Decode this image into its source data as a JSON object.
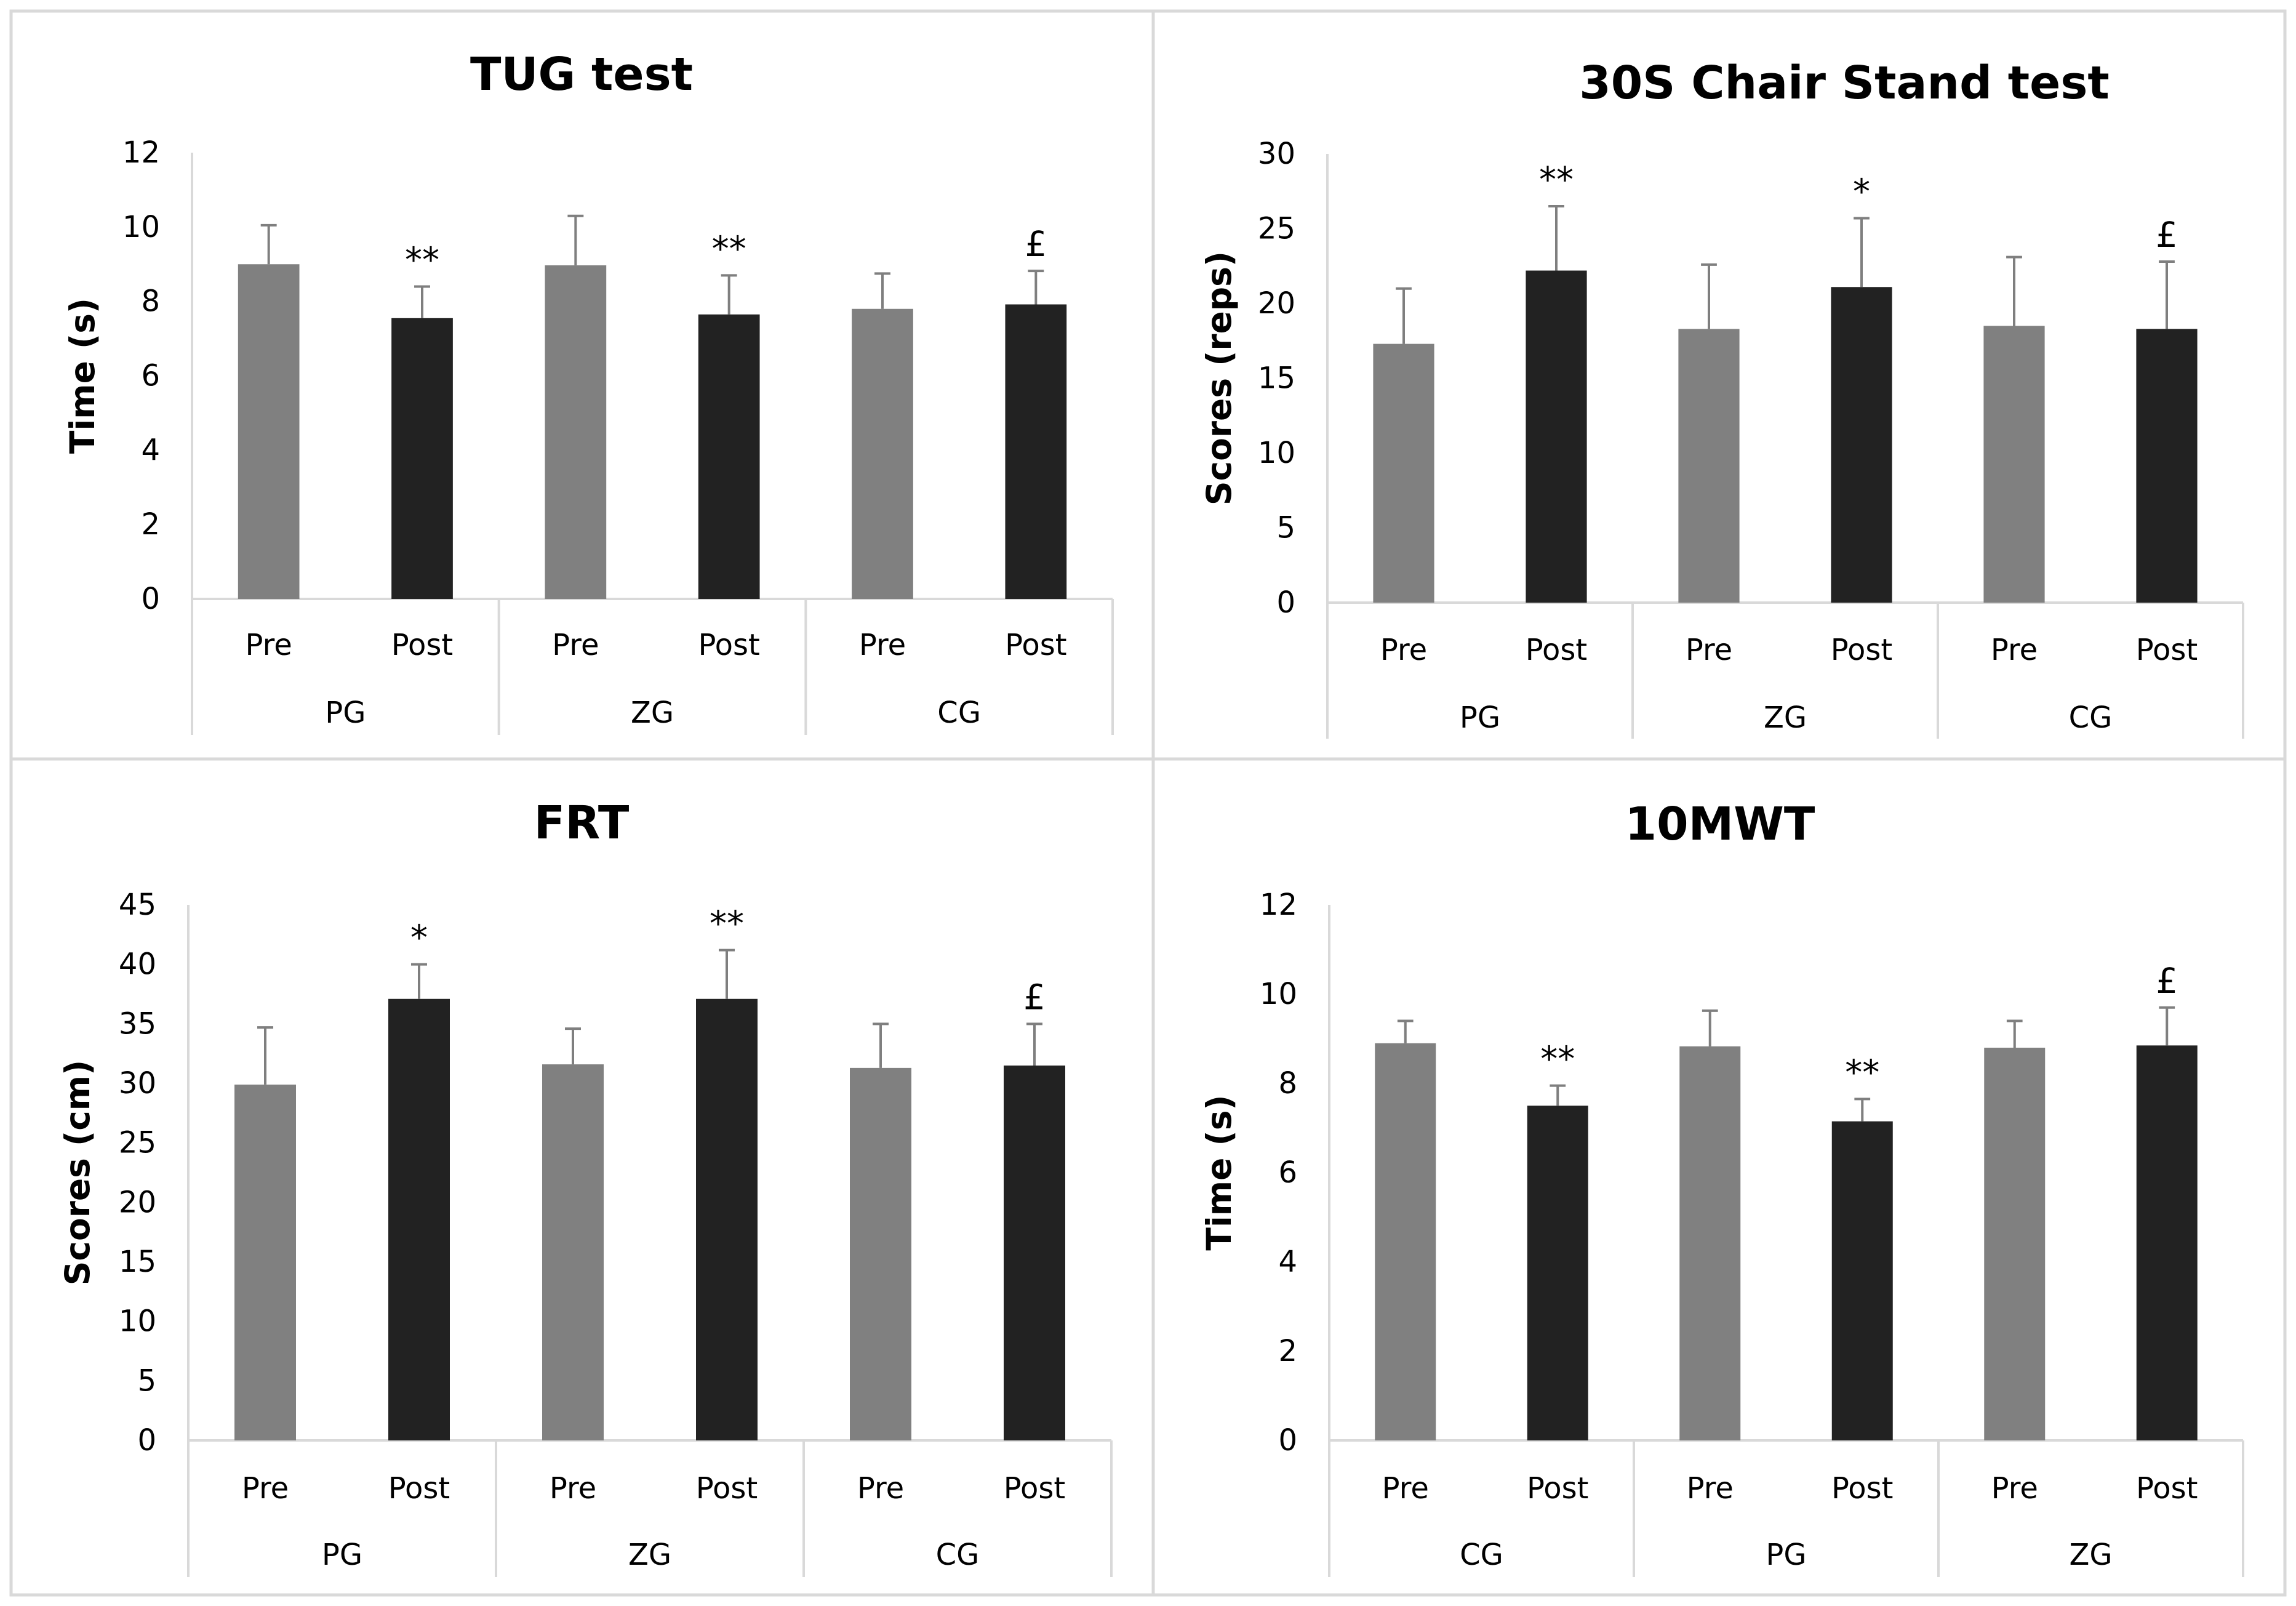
{
  "colors": {
    "pre": "#808080",
    "post": "#222222",
    "axis": "#d9d9d9",
    "error": "#7f7f7f",
    "background": "#ffffff"
  },
  "chart_data": [
    {
      "type": "bar",
      "title": "TUG test",
      "xlabel": "",
      "ylabel": "Time (s)",
      "ylim": [
        0,
        12
      ],
      "yticks": [
        "0",
        "2",
        "4",
        "6",
        "8",
        "10",
        "12"
      ],
      "groups": [
        "PG",
        "ZG",
        "CG"
      ],
      "categories": [
        "Pre",
        "Post",
        "Pre",
        "Post",
        "Pre",
        "Post"
      ],
      "values": [
        9.0,
        7.55,
        8.97,
        7.65,
        7.8,
        7.92
      ],
      "errors": [
        1.05,
        0.85,
        1.33,
        1.05,
        0.95,
        0.9
      ],
      "significance": [
        "",
        "**",
        "",
        "**",
        "",
        "£"
      ]
    },
    {
      "type": "bar",
      "title": "30S Chair Stand test",
      "xlabel": "",
      "ylabel": "Scores (reps)",
      "ylim": [
        0,
        30
      ],
      "yticks": [
        "0",
        "5",
        "10",
        "15",
        "20",
        "25",
        "30"
      ],
      "groups": [
        "PG",
        "ZG",
        "CG"
      ],
      "categories": [
        "Pre",
        "Post",
        "Pre",
        "Post",
        "Pre",
        "Post"
      ],
      "values": [
        17.3,
        22.2,
        18.3,
        21.1,
        18.5,
        18.3
      ],
      "errors": [
        3.7,
        4.3,
        4.3,
        4.6,
        4.6,
        4.5
      ],
      "significance": [
        "",
        "**",
        "",
        "*",
        "",
        "£"
      ]
    },
    {
      "type": "bar",
      "title": "FRT",
      "xlabel": "",
      "ylabel": "Scores  (cm)",
      "ylim": [
        0,
        45
      ],
      "yticks": [
        "0",
        "5",
        "10",
        "15",
        "20",
        "25",
        "30",
        "35",
        "40",
        "45"
      ],
      "groups": [
        "PG",
        "ZG",
        "CG"
      ],
      "categories": [
        "Pre",
        "Post",
        "Pre",
        "Post",
        "Pre",
        "Post"
      ],
      "values": [
        29.9,
        37.1,
        31.6,
        37.1,
        31.3,
        31.5
      ],
      "errors": [
        4.8,
        2.9,
        3.0,
        4.1,
        3.7,
        3.5
      ],
      "significance": [
        "",
        "*",
        "",
        "**",
        "",
        "£"
      ]
    },
    {
      "type": "bar",
      "title": "10MWT",
      "xlabel": "",
      "ylabel": "Time (s)",
      "ylim": [
        0,
        12
      ],
      "yticks": [
        "0",
        "2",
        "4",
        "6",
        "8",
        "10",
        "12"
      ],
      "groups": [
        "CG",
        "PG",
        "ZG"
      ],
      "categories": [
        "Pre",
        "Post",
        "Pre",
        "Post",
        "Pre",
        "Post"
      ],
      "values": [
        8.9,
        7.5,
        8.83,
        7.15,
        8.8,
        8.85
      ],
      "errors": [
        0.5,
        0.45,
        0.8,
        0.5,
        0.6,
        0.85
      ],
      "significance": [
        "",
        "**",
        "",
        "**",
        "",
        "£"
      ]
    }
  ]
}
